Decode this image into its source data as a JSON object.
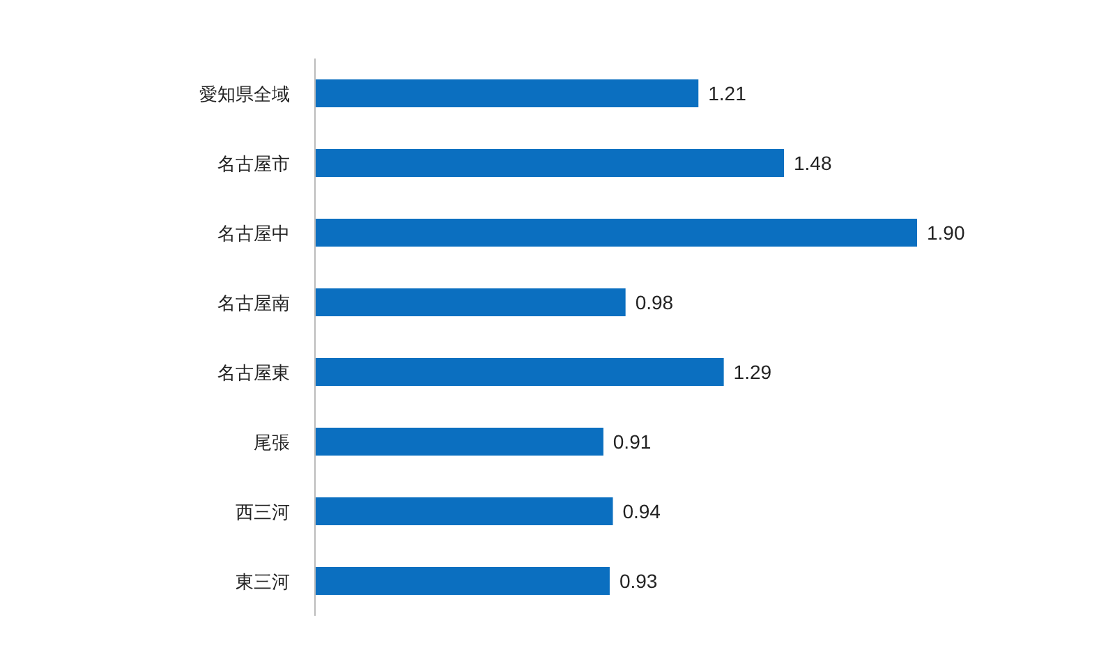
{
  "chart_data": {
    "type": "bar",
    "orientation": "horizontal",
    "categories": [
      "愛知県全域",
      "名古屋市",
      "名古屋中",
      "名古屋南",
      "名古屋東",
      "尾張",
      "西三河",
      "東三河"
    ],
    "values": [
      1.21,
      1.48,
      1.9,
      0.98,
      1.29,
      0.91,
      0.94,
      0.93
    ],
    "value_labels": [
      "1.21",
      "1.48",
      "1.90",
      "0.98",
      "1.29",
      "0.91",
      "0.94",
      "0.93"
    ],
    "color": "#0b6fc0"
  }
}
